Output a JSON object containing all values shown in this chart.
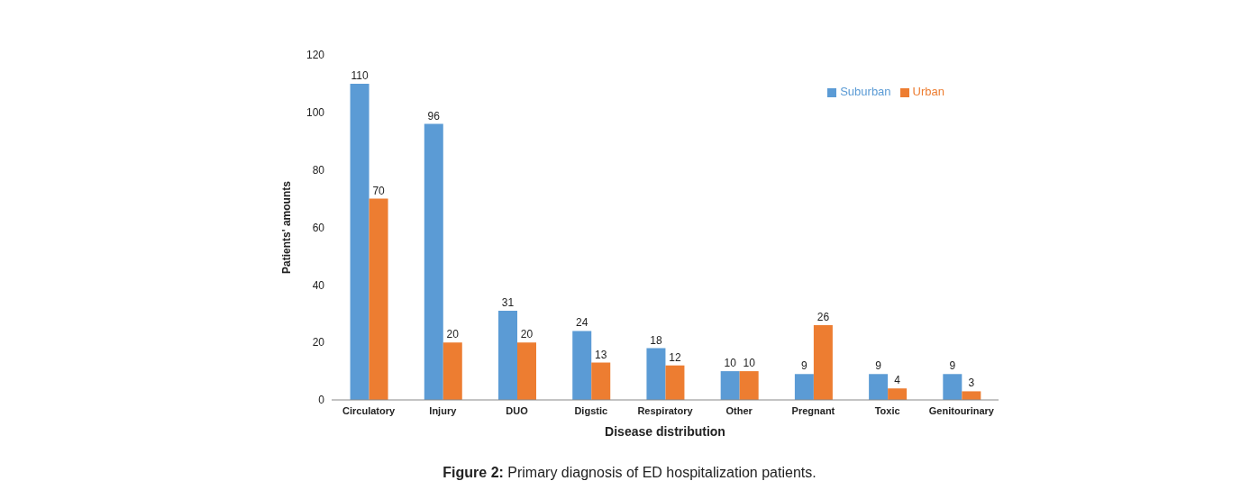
{
  "chart_data": {
    "type": "bar",
    "xlabel": "Disease distribution",
    "ylabel": "Patients' amounts",
    "categories": [
      "Circulatory",
      "Injury",
      "DUO",
      "Digstic",
      "Respiratory",
      "Other",
      "Pregnant",
      "Toxic",
      "Genitourinary"
    ],
    "series": [
      {
        "name": "Suburban",
        "color": "#5b9bd5",
        "values": [
          110,
          96,
          31,
          24,
          18,
          10,
          9,
          9,
          9
        ]
      },
      {
        "name": "Urban",
        "color": "#ed7d31",
        "values": [
          70,
          20,
          20,
          13,
          12,
          10,
          26,
          4,
          3
        ]
      }
    ],
    "ylim": [
      0,
      120
    ],
    "yticks": [
      0,
      20,
      40,
      60,
      80,
      100,
      120
    ],
    "grid": false,
    "legend": "top right",
    "data_labels": true,
    "annotations": [
      "Figure 2: Primary diagnosis of ED hospitalization patients."
    ]
  }
}
